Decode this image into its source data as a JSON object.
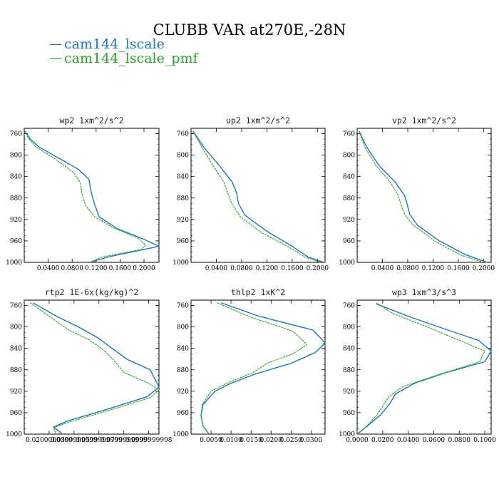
{
  "figure": {
    "title": "CLUBB VAR at270E,-28N",
    "legend": [
      {
        "label": "cam144_lscale",
        "color": "#1f77b4"
      },
      {
        "label": "cam144_lscale_pmf",
        "color": "#2ca02c"
      }
    ]
  },
  "chart_data": [
    {
      "type": "line",
      "title": "wp2  1xm^2/s^2",
      "xlim": [
        0.0,
        0.225
      ],
      "ylim": [
        1000,
        750
      ],
      "y_inverted": true,
      "xticks": [
        "0.0400",
        "0.0800",
        "0.1200",
        "0.1600",
        "0.2000"
      ],
      "xtick_values": [
        0.04,
        0.08,
        0.12,
        0.16,
        0.2
      ],
      "yticks": [
        760,
        800,
        840,
        880,
        920,
        960,
        1000
      ],
      "series": [
        {
          "name": "cam144_lscale",
          "x": [
            0.001,
            0.01,
            0.025,
            0.055,
            0.09,
            0.108,
            0.112,
            0.117,
            0.125,
            0.155,
            0.2,
            0.225,
            0.14,
            0.11
          ],
          "y": [
            755,
            770,
            785,
            804,
            826,
            845,
            870,
            890,
            915,
            937,
            957,
            970,
            990,
            1000
          ]
        },
        {
          "name": "cam144_lscale_pmf",
          "x": [
            0.001,
            0.008,
            0.02,
            0.05,
            0.082,
            0.093,
            0.097,
            0.103,
            0.118,
            0.148,
            0.19,
            0.203,
            0.195,
            0.13,
            0.11
          ],
          "y": [
            755,
            770,
            785,
            806,
            832,
            850,
            875,
            895,
            915,
            935,
            955,
            968,
            976,
            990,
            1000
          ]
        }
      ]
    },
    {
      "type": "line",
      "title": "up2  1xm^2/s^2",
      "xlim": [
        0.0,
        0.212
      ],
      "ylim": [
        1000,
        750
      ],
      "y_inverted": true,
      "xticks": [
        "0.0400",
        "0.0800",
        "0.1200",
        "0.1600",
        "0.2000"
      ],
      "xtick_values": [
        0.04,
        0.08,
        0.12,
        0.16,
        0.2
      ],
      "yticks": [
        760,
        800,
        840,
        880,
        920,
        960,
        1000
      ],
      "series": [
        {
          "name": "cam144_lscale",
          "x": [
            0.003,
            0.02,
            0.045,
            0.065,
            0.072,
            0.075,
            0.085,
            0.12,
            0.16,
            0.185,
            0.21
          ],
          "y": [
            755,
            785,
            820,
            850,
            870,
            890,
            912,
            942,
            970,
            990,
            1000
          ]
        },
        {
          "name": "cam144_lscale_pmf",
          "x": [
            0.003,
            0.017,
            0.035,
            0.052,
            0.058,
            0.064,
            0.078,
            0.112,
            0.155,
            0.18,
            0.205
          ],
          "y": [
            755,
            785,
            820,
            850,
            870,
            890,
            915,
            945,
            972,
            990,
            1000
          ]
        }
      ]
    },
    {
      "type": "line",
      "title": "vp2  1xm^2/s^2",
      "xlim": [
        0.0,
        0.212
      ],
      "ylim": [
        1000,
        750
      ],
      "y_inverted": true,
      "xticks": [
        "0.0400",
        "0.0800",
        "0.1200",
        "0.1600",
        "0.2000"
      ],
      "xtick_values": [
        0.04,
        0.08,
        0.12,
        0.16,
        0.2
      ],
      "yticks": [
        760,
        800,
        840,
        880,
        920,
        960,
        1000
      ],
      "series": [
        {
          "name": "cam144_lscale",
          "x": [
            0.003,
            0.015,
            0.035,
            0.06,
            0.075,
            0.08,
            0.083,
            0.095,
            0.13,
            0.17,
            0.205
          ],
          "y": [
            755,
            785,
            820,
            850,
            875,
            895,
            910,
            930,
            960,
            985,
            1000
          ]
        },
        {
          "name": "cam144_lscale_pmf",
          "x": [
            0.003,
            0.012,
            0.03,
            0.052,
            0.065,
            0.07,
            0.075,
            0.088,
            0.125,
            0.165,
            0.2
          ],
          "y": [
            755,
            785,
            820,
            850,
            875,
            895,
            910,
            930,
            962,
            987,
            1000
          ]
        }
      ]
    },
    {
      "type": "line",
      "title": "rtp2  1E-6x(kg/kg)^2",
      "xlim": [
        0.0,
        0.92
      ],
      "ylim": [
        1000,
        750
      ],
      "y_inverted": true,
      "xticks": [
        "0.0200000000",
        "0.0399999999",
        "0.0599999999",
        "0.0799999999",
        "0.0999999998"
      ],
      "xtick_values": [
        0.17,
        0.34,
        0.51,
        0.68,
        0.85
      ],
      "yticks": [
        760,
        800,
        840,
        880,
        920,
        960,
        1000
      ],
      "series": [
        {
          "name": "cam144_lscale",
          "x": [
            0.06,
            0.22,
            0.37,
            0.5,
            0.6,
            0.7,
            0.86,
            0.92,
            0.84,
            0.55,
            0.3,
            0.2,
            0.24,
            0.26
          ],
          "y": [
            755,
            780,
            800,
            820,
            840,
            860,
            880,
            912,
            930,
            955,
            975,
            987,
            995,
            1000
          ]
        },
        {
          "name": "cam144_lscale_pmf",
          "x": [
            0.04,
            0.18,
            0.3,
            0.45,
            0.55,
            0.62,
            0.68,
            0.85,
            0.92,
            0.86,
            0.55,
            0.3,
            0.2,
            0.21,
            0.22
          ],
          "y": [
            755,
            782,
            805,
            825,
            845,
            865,
            885,
            905,
            918,
            932,
            958,
            978,
            988,
            995,
            1000
          ]
        }
      ]
    },
    {
      "type": "line",
      "title": "thlp2  1xK^2",
      "xlim": [
        0.0,
        0.0335
      ],
      "ylim": [
        1000,
        750
      ],
      "y_inverted": true,
      "xticks": [
        "0.0050",
        "0.0100",
        "0.0150",
        "0.0200",
        "0.0250",
        "0.0300"
      ],
      "xtick_values": [
        0.005,
        0.01,
        0.015,
        0.02,
        0.025,
        0.03
      ],
      "yticks": [
        760,
        800,
        840,
        880,
        920,
        960,
        1000
      ],
      "series": [
        {
          "name": "cam144_lscale",
          "x": [
            0.0075,
            0.017,
            0.0305,
            0.0335,
            0.031,
            0.025,
            0.016,
            0.01,
            0.006,
            0.003,
            0.0025,
            0.003,
            0.0045
          ],
          "y": [
            755,
            780,
            806,
            830,
            848,
            868,
            888,
            905,
            920,
            945,
            965,
            985,
            1000
          ]
        },
        {
          "name": "cam144_lscale_pmf",
          "x": [
            0.0065,
            0.015,
            0.0255,
            0.029,
            0.0255,
            0.019,
            0.0155,
            0.009,
            0.005,
            0.0028,
            0.0025,
            0.003,
            0.0045
          ],
          "y": [
            755,
            782,
            808,
            833,
            850,
            868,
            885,
            905,
            920,
            945,
            965,
            985,
            1000
          ]
        }
      ]
    },
    {
      "type": "line",
      "title": "wp3  1xm^3/s^3",
      "xlim": [
        0.0,
        0.105
      ],
      "ylim": [
        1000,
        750
      ],
      "y_inverted": true,
      "xticks": [
        "0.0000",
        "0.0200",
        "0.0400",
        "0.0600",
        "0.0800",
        "0.1000"
      ],
      "xtick_values": [
        0.0,
        0.02,
        0.04,
        0.06,
        0.08,
        0.1
      ],
      "yticks": [
        760,
        800,
        840,
        880,
        920,
        960,
        1000
      ],
      "series": [
        {
          "name": "cam144_lscale",
          "x": [
            0.015,
            0.04,
            0.07,
            0.095,
            0.105,
            0.1,
            0.07,
            0.045,
            0.03,
            0.025,
            0.018,
            0.008,
            0.0
          ],
          "y": [
            757,
            780,
            805,
            825,
            845,
            865,
            885,
            905,
            925,
            945,
            965,
            985,
            1000
          ]
        },
        {
          "name": "cam144_lscale_pmf",
          "x": [
            0.015,
            0.028,
            0.055,
            0.08,
            0.1,
            0.096,
            0.065,
            0.035,
            0.025,
            0.02,
            0.015,
            0.007,
            0.0
          ],
          "y": [
            755,
            775,
            800,
            825,
            845,
            865,
            888,
            912,
            930,
            948,
            966,
            986,
            1000
          ]
        }
      ]
    }
  ]
}
